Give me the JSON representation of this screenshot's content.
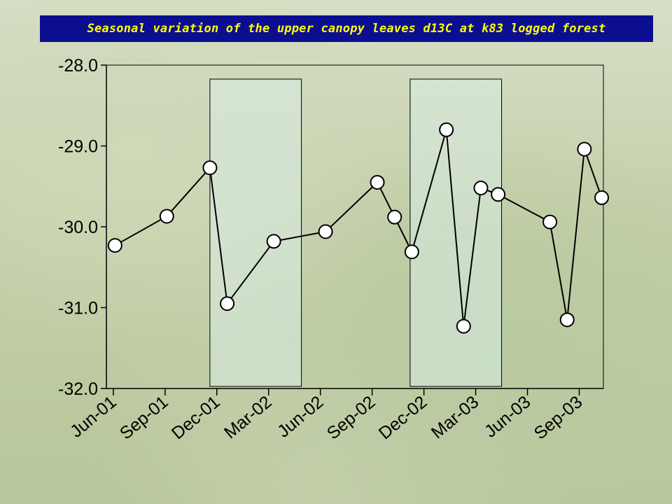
{
  "title": "Seasonal variation of the upper canopy leaves d13C at k83 logged forest",
  "colors": {
    "title_bg": "#0b0f8f",
    "title_text": "#ffff00",
    "line": "#000000",
    "marker_fill": "#ffffff",
    "highlight_fill": "#d8ece6"
  },
  "chart_data": {
    "type": "line",
    "title": "Seasonal variation of the upper canopy leaves d13C at k83 logged forest",
    "xlabel": "",
    "ylabel": "",
    "ylim": [
      -32.0,
      -28.0
    ],
    "ytick_labels": [
      "-28.0",
      "-29.0",
      "-30.0",
      "-31.0",
      "-32.0"
    ],
    "ytick_values": [
      -28.0,
      -29.0,
      -30.0,
      -31.0,
      -32.0
    ],
    "xtick_labels": [
      "Jun-01",
      "Sep-01",
      "Dec-01",
      "Mar-02",
      "Jun-02",
      "Sep-02",
      "Dec-02",
      "Mar-03",
      "Jun-03",
      "Sep-03"
    ],
    "xtick_values": [
      0,
      3,
      6,
      9,
      12,
      15,
      18,
      21,
      24,
      27
    ],
    "xlim": [
      -0.4,
      28.4
    ],
    "x_unit": "months since Jun-01",
    "grid": false,
    "legend": "none",
    "shaded_periods": [
      {
        "start": 5.6,
        "end": 10.9
      },
      {
        "start": 17.2,
        "end": 22.5
      }
    ],
    "series": [
      {
        "x": [
          0.1,
          3.1,
          5.6,
          6.6,
          9.3,
          12.3,
          15.3,
          16.3,
          17.3,
          19.3,
          20.3,
          21.3,
          22.3,
          25.3,
          26.3,
          27.3,
          28.3
        ],
        "values": [
          -30.23,
          -29.87,
          -29.27,
          -30.95,
          -30.18,
          -30.06,
          -29.45,
          -29.88,
          -30.31,
          -28.8,
          -31.23,
          -29.52,
          -29.6,
          -29.94,
          -31.15,
          -29.04,
          -29.64
        ]
      }
    ]
  }
}
